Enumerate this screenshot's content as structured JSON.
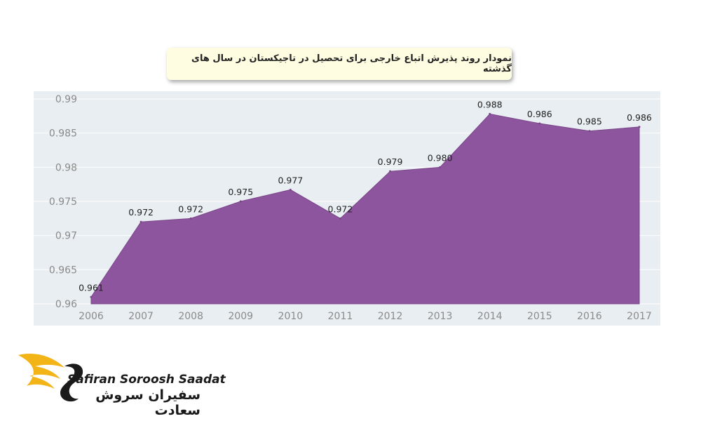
{
  "title": "نمودار روند پذیرش اتباع خارجی برای تحصیل در تاجیکستان در سال های گذشته",
  "brand": {
    "name_en": "Safiran Soroosh Saadat",
    "name_fa": "سفیران سروش سعادت"
  },
  "colors": {
    "area_fill": "#8d559d",
    "panel_bg": "#e9eef2",
    "title_bg": "#fffde1",
    "logo_gold": "#f2b417"
  },
  "chart_data": {
    "type": "area",
    "title": "نمودار روند پذیرش اتباع خارجی برای تحصیل در تاجیکستان در سال های گذشته",
    "xlabel": "",
    "ylabel": "",
    "categories": [
      "2006",
      "2007",
      "2008",
      "2009",
      "2010",
      "2011",
      "2012",
      "2013",
      "2014",
      "2015",
      "2016",
      "2017"
    ],
    "values": [
      0.961,
      0.972,
      0.9725,
      0.975,
      0.9767,
      0.9725,
      0.9794,
      0.98,
      0.9878,
      0.9864,
      0.9853,
      0.9859
    ],
    "data_labels": [
      "0.961",
      "0.972",
      "0.972",
      "0.975",
      "0.977",
      "0.972",
      "0.979",
      "0.980",
      "0.988",
      "0.986",
      "0.985",
      "0.986"
    ],
    "ylim": [
      0.96,
      0.99
    ],
    "yticks": [
      "0.96",
      "0.965",
      "0.97",
      "0.975",
      "0.98",
      "0.985",
      "0.99"
    ],
    "grid": true,
    "legend": "none"
  }
}
